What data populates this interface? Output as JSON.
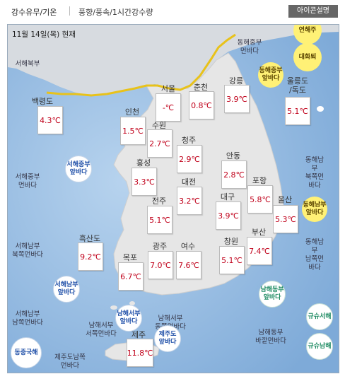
{
  "tabs": [
    "강수유무/기온",
    "풍향/풍속/1시간강수량"
  ],
  "help_button": "아이콘설명",
  "date": "11월 14일(목) 현재",
  "cities": [
    {
      "name": "백령도",
      "temp": "4.3℃"
    },
    {
      "name": "서울",
      "temp": "-℃"
    },
    {
      "name": "춘천",
      "temp": "0.8℃"
    },
    {
      "name": "강릉",
      "temp": "3.9℃"
    },
    {
      "name": "울릉도\n/독도",
      "temp": "5.1℃"
    },
    {
      "name": "인천",
      "temp": "1.5℃"
    },
    {
      "name": "수원",
      "temp": "2.7℃"
    },
    {
      "name": "청주",
      "temp": "2.9℃"
    },
    {
      "name": "안동",
      "temp": "2.8℃"
    },
    {
      "name": "홍성",
      "temp": "3.3℃"
    },
    {
      "name": "대전",
      "temp": "3.2℃"
    },
    {
      "name": "포항",
      "temp": "5.8℃"
    },
    {
      "name": "전주",
      "temp": "5.1℃"
    },
    {
      "name": "대구",
      "temp": "3.9℃"
    },
    {
      "name": "울산",
      "temp": "5.3℃"
    },
    {
      "name": "흑산도",
      "temp": "9.2℃"
    },
    {
      "name": "목포",
      "temp": "6.7℃"
    },
    {
      "name": "광주",
      "temp": "7.0℃"
    },
    {
      "name": "여수",
      "temp": "7.6℃"
    },
    {
      "name": "창원",
      "temp": "5.1℃"
    },
    {
      "name": "부산",
      "temp": "7.4℃"
    },
    {
      "name": "제주",
      "temp": "11.8℃"
    }
  ],
  "sea_labels": [
    "서해북부",
    "동해중부\n먼바다",
    "동해남부\n북쪽먼바다",
    "서해중부\n먼바다",
    "서해남부\n북쪽먼바다",
    "동해남부\n남쪽먼바다",
    "서해남부\n남쪽먼바다",
    "남해서부\n서쪽먼바다",
    "남해서부\n동쪽먼바다",
    "남해동부\n바깥먼바다",
    "제주도남쪽\n먼바다"
  ],
  "bubbles": [
    {
      "label": "연해주",
      "color": "yellow"
    },
    {
      "label": "대화퇴",
      "color": "yellow"
    },
    {
      "label": "동해중부\n앞바다",
      "color": "yellow"
    },
    {
      "label": "동해남부\n앞바다",
      "color": "yellow"
    },
    {
      "label": "서해중부\n앞바다",
      "color": "white"
    },
    {
      "label": "서해남부\n앞바다",
      "color": "white"
    },
    {
      "label": "남해서부\n앞바다",
      "color": "white"
    },
    {
      "label": "남해동부\n앞바다",
      "color": "green"
    },
    {
      "label": "제주도\n앞바다",
      "color": "white"
    },
    {
      "label": "규슈서해",
      "color": "green"
    },
    {
      "label": "규슈남해",
      "color": "green"
    },
    {
      "label": "동중국해",
      "color": "white"
    }
  ],
  "colors": {
    "sea": "#8fb8e0",
    "land": "#e3e3e3",
    "north_line": "#e8c21a",
    "temp_text": "#c0001a"
  }
}
